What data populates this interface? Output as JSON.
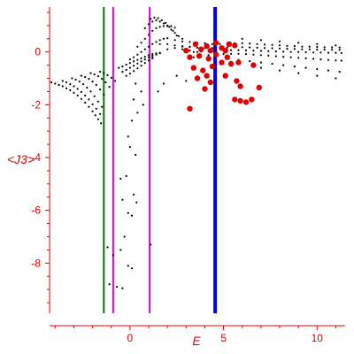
{
  "chart_data": {
    "type": "scatter",
    "xlabel": "E",
    "ylabel": "<J3>",
    "xlim": [
      -4.3,
      11.5
    ],
    "ylim": [
      -9.9,
      1.7
    ],
    "xticks": [
      {
        "value": 0,
        "label": "0"
      },
      {
        "value": 5,
        "label": "5"
      },
      {
        "value": 10,
        "label": "10"
      }
    ],
    "yticks": [
      {
        "value": 0,
        "label": "0"
      },
      {
        "value": -2,
        "label": "-2"
      },
      {
        "value": -4,
        "label": "-4"
      },
      {
        "value": -6,
        "label": "-6"
      },
      {
        "value": -8,
        "label": "-8"
      }
    ],
    "axis_color": "#e00000",
    "vertical_lines": [
      {
        "x": -1.4,
        "color": "#007a00"
      },
      {
        "x": -0.9,
        "color": "#e000e0"
      },
      {
        "x": 1.05,
        "color": "#e000e0"
      },
      {
        "x": 4.55,
        "color": "#0000ee"
      }
    ],
    "series": [
      {
        "color": "#000000",
        "points": [
          [
            -4.2,
            -1.15
          ],
          [
            -4.0,
            -1.2
          ],
          [
            -3.8,
            -1.25
          ],
          [
            -3.6,
            -1.3
          ],
          [
            -3.4,
            -1.38
          ],
          [
            -3.2,
            -1.45
          ],
          [
            -3.0,
            -1.55
          ],
          [
            -2.8,
            -1.65
          ],
          [
            -2.6,
            -1.78
          ],
          [
            -2.4,
            -1.92
          ],
          [
            -2.2,
            -2.08
          ],
          [
            -2.0,
            -2.25
          ],
          [
            -1.85,
            -2.4
          ],
          [
            -1.7,
            -2.55
          ],
          [
            -1.55,
            -2.7
          ],
          [
            -3.6,
            -1.1
          ],
          [
            -3.4,
            -1.15
          ],
          [
            -3.2,
            -1.22
          ],
          [
            -3.0,
            -1.3
          ],
          [
            -2.8,
            -1.4
          ],
          [
            -2.6,
            -1.52
          ],
          [
            -2.4,
            -1.65
          ],
          [
            -2.2,
            -1.8
          ],
          [
            -2.0,
            -1.98
          ],
          [
            -1.8,
            -2.15
          ],
          [
            -1.6,
            -2.35
          ],
          [
            -3.1,
            -1.0
          ],
          [
            -2.9,
            -1.05
          ],
          [
            -2.7,
            -1.12
          ],
          [
            -2.5,
            -1.22
          ],
          [
            -2.3,
            -1.35
          ],
          [
            -2.1,
            -1.5
          ],
          [
            -1.9,
            -1.68
          ],
          [
            -1.7,
            -1.88
          ],
          [
            -1.5,
            -2.08
          ],
          [
            -2.6,
            -0.9
          ],
          [
            -2.4,
            -0.95
          ],
          [
            -2.2,
            -1.02
          ],
          [
            -2.0,
            -1.12
          ],
          [
            -1.8,
            -1.25
          ],
          [
            -1.6,
            -1.42
          ],
          [
            -1.4,
            -1.62
          ],
          [
            -2.1,
            -0.8
          ],
          [
            -1.9,
            -0.85
          ],
          [
            -1.7,
            -0.92
          ],
          [
            -1.5,
            -1.02
          ],
          [
            -1.3,
            -1.15
          ],
          [
            -1.1,
            -1.32
          ],
          [
            -1.6,
            -0.75
          ],
          [
            -1.4,
            -0.8
          ],
          [
            -1.2,
            -0.88
          ],
          [
            -1.0,
            -0.98
          ],
          [
            -0.8,
            -1.1
          ],
          [
            -0.6,
            -0.6
          ],
          [
            -0.4,
            -0.55
          ],
          [
            -0.2,
            -0.48
          ],
          [
            0.0,
            -0.42
          ],
          [
            0.2,
            -0.36
          ],
          [
            0.4,
            -0.3
          ],
          [
            0.6,
            -0.24
          ],
          [
            0.8,
            -0.18
          ],
          [
            1.0,
            -0.12
          ],
          [
            1.2,
            -0.08
          ],
          [
            1.4,
            -0.05
          ],
          [
            1.6,
            -0.03
          ],
          [
            -0.4,
            -0.75
          ],
          [
            -0.2,
            -0.68
          ],
          [
            0.0,
            -0.6
          ],
          [
            0.2,
            -0.52
          ],
          [
            0.4,
            -0.44
          ],
          [
            0.6,
            -0.36
          ],
          [
            0.8,
            -0.28
          ],
          [
            1.0,
            -0.2
          ],
          [
            1.2,
            -0.14
          ],
          [
            1.4,
            -0.1
          ],
          [
            -0.2,
            -0.9
          ],
          [
            0.0,
            -0.82
          ],
          [
            0.2,
            -0.72
          ],
          [
            0.4,
            -0.62
          ],
          [
            0.6,
            -0.52
          ],
          [
            0.8,
            -0.42
          ],
          [
            1.0,
            -0.32
          ],
          [
            1.2,
            -0.24
          ],
          [
            0.0,
            -0.28
          ],
          [
            0.2,
            -0.2
          ],
          [
            0.4,
            -0.1
          ],
          [
            0.6,
            0.0
          ],
          [
            0.8,
            0.1
          ],
          [
            1.0,
            0.2
          ],
          [
            1.2,
            0.3
          ],
          [
            1.4,
            0.38
          ],
          [
            1.6,
            0.45
          ],
          [
            1.8,
            0.5
          ],
          [
            2.0,
            0.52
          ],
          [
            0.4,
            0.2
          ],
          [
            0.6,
            0.35
          ],
          [
            0.8,
            0.5
          ],
          [
            1.0,
            0.65
          ],
          [
            1.2,
            0.8
          ],
          [
            1.4,
            0.9
          ],
          [
            1.6,
            0.95
          ],
          [
            1.8,
            0.98
          ],
          [
            2.0,
            1.0
          ],
          [
            2.2,
            0.98
          ],
          [
            2.4,
            0.92
          ],
          [
            0.8,
            0.9
          ],
          [
            1.0,
            1.05
          ],
          [
            1.2,
            1.15
          ],
          [
            1.4,
            1.2
          ],
          [
            1.6,
            1.15
          ],
          [
            1.8,
            1.08
          ],
          [
            2.0,
            0.98
          ],
          [
            2.2,
            0.85
          ],
          [
            2.4,
            0.72
          ],
          [
            2.6,
            0.6
          ],
          [
            2.8,
            0.5
          ],
          [
            1.1,
            1.25
          ],
          [
            1.3,
            1.3
          ],
          [
            1.5,
            1.28
          ],
          [
            1.7,
            1.2
          ],
          [
            1.9,
            1.1
          ],
          [
            2.1,
            0.95
          ],
          [
            2.3,
            0.8
          ],
          [
            2.5,
            0.62
          ],
          [
            1.2,
            -0.2
          ],
          [
            1.6,
            -0.05
          ],
          [
            2.0,
            0.1
          ],
          [
            2.4,
            0.15
          ],
          [
            2.8,
            0.1
          ],
          [
            3.2,
            0.05
          ],
          [
            3.6,
            0.0
          ],
          [
            1.6,
            0.3
          ],
          [
            2.0,
            0.3
          ],
          [
            2.4,
            0.25
          ],
          [
            2.8,
            0.22
          ],
          [
            3.2,
            0.2
          ],
          [
            2.4,
            0.45
          ],
          [
            2.8,
            0.4
          ],
          [
            3.2,
            0.38
          ],
          [
            3.6,
            0.35
          ],
          [
            4.0,
            0.33
          ],
          [
            4.4,
            0.3
          ],
          [
            4.8,
            0.3
          ],
          [
            5.2,
            0.32
          ],
          [
            5.6,
            0.33
          ],
          [
            6.0,
            0.33
          ],
          [
            6.4,
            0.32
          ],
          [
            6.8,
            0.3
          ],
          [
            7.2,
            0.28
          ],
          [
            7.6,
            0.27
          ],
          [
            8.0,
            0.25
          ],
          [
            8.4,
            0.23
          ],
          [
            8.8,
            0.22
          ],
          [
            9.2,
            0.2
          ],
          [
            9.6,
            0.2
          ],
          [
            10.0,
            0.19
          ],
          [
            10.4,
            0.18
          ],
          [
            10.8,
            0.17
          ],
          [
            11.2,
            0.17
          ],
          [
            2.8,
            0.2
          ],
          [
            3.2,
            0.18
          ],
          [
            3.6,
            0.16
          ],
          [
            4.0,
            0.15
          ],
          [
            4.4,
            0.15
          ],
          [
            4.8,
            0.16
          ],
          [
            5.2,
            0.17
          ],
          [
            5.6,
            0.18
          ],
          [
            6.0,
            0.18
          ],
          [
            6.4,
            0.17
          ],
          [
            6.8,
            0.16
          ],
          [
            7.2,
            0.15
          ],
          [
            7.6,
            0.14
          ],
          [
            8.0,
            0.13
          ],
          [
            8.4,
            0.12
          ],
          [
            8.8,
            0.11
          ],
          [
            9.2,
            0.1
          ],
          [
            9.6,
            0.1
          ],
          [
            10.0,
            0.09
          ],
          [
            10.4,
            0.09
          ],
          [
            10.8,
            0.08
          ],
          [
            11.2,
            0.08
          ],
          [
            3.0,
            0.0
          ],
          [
            3.4,
            0.0
          ],
          [
            3.8,
            0.02
          ],
          [
            4.2,
            0.03
          ],
          [
            4.6,
            0.05
          ],
          [
            5.0,
            0.06
          ],
          [
            5.4,
            0.07
          ],
          [
            5.8,
            0.07
          ],
          [
            6.2,
            0.06
          ],
          [
            6.6,
            0.05
          ],
          [
            7.0,
            0.04
          ],
          [
            7.4,
            0.03
          ],
          [
            7.8,
            0.02
          ],
          [
            8.2,
            0.01
          ],
          [
            8.6,
            0.0
          ],
          [
            9.0,
            0.0
          ],
          [
            9.4,
            -0.01
          ],
          [
            9.8,
            -0.02
          ],
          [
            10.2,
            -0.02
          ],
          [
            10.6,
            -0.03
          ],
          [
            11.0,
            -0.03
          ],
          [
            11.3,
            -0.04
          ],
          [
            3.4,
            -0.2
          ],
          [
            3.8,
            -0.16
          ],
          [
            4.2,
            -0.12
          ],
          [
            4.6,
            -0.1
          ],
          [
            5.0,
            -0.08
          ],
          [
            5.4,
            -0.07
          ],
          [
            5.8,
            -0.07
          ],
          [
            6.2,
            -0.08
          ],
          [
            6.6,
            -0.1
          ],
          [
            7.0,
            -0.12
          ],
          [
            7.4,
            -0.14
          ],
          [
            7.8,
            -0.16
          ],
          [
            8.2,
            -0.18
          ],
          [
            8.6,
            -0.2
          ],
          [
            9.0,
            -0.22
          ],
          [
            9.4,
            -0.24
          ],
          [
            9.8,
            -0.26
          ],
          [
            10.2,
            -0.28
          ],
          [
            10.6,
            -0.3
          ],
          [
            11.0,
            -0.32
          ],
          [
            11.3,
            -0.33
          ],
          [
            5.8,
            -0.3
          ],
          [
            6.4,
            -0.35
          ],
          [
            7.0,
            -0.4
          ],
          [
            7.6,
            -0.45
          ],
          [
            8.2,
            -0.5
          ],
          [
            8.8,
            -0.55
          ],
          [
            9.4,
            -0.6
          ],
          [
            10.0,
            -0.65
          ],
          [
            10.6,
            -0.7
          ],
          [
            11.2,
            -0.75
          ],
          [
            7.0,
            -0.6
          ],
          [
            8.0,
            -0.7
          ],
          [
            9.0,
            -0.8
          ],
          [
            10.0,
            -0.9
          ],
          [
            11.0,
            -1.0
          ],
          [
            6.0,
            0.5
          ],
          [
            7.0,
            0.45
          ],
          [
            8.0,
            0.4
          ],
          [
            9.0,
            0.35
          ],
          [
            10.0,
            0.3
          ],
          [
            11.0,
            0.25
          ],
          [
            0.3,
            -1.2
          ],
          [
            0.6,
            -1.5
          ],
          [
            0.2,
            -1.8
          ],
          [
            0.7,
            -2.0
          ],
          [
            0.4,
            -2.3
          ],
          [
            0.1,
            -2.6
          ],
          [
            -0.1,
            -3.2
          ],
          [
            0.0,
            -3.6
          ],
          [
            0.3,
            -3.9
          ],
          [
            -0.2,
            -4.7
          ],
          [
            -0.5,
            -4.8
          ],
          [
            0.2,
            -5.4
          ],
          [
            0.35,
            -5.7
          ],
          [
            -0.4,
            -5.6
          ],
          [
            -0.1,
            -6.1
          ],
          [
            0.1,
            -6.2
          ],
          [
            -0.3,
            -7.0
          ],
          [
            -0.5,
            -7.5
          ],
          [
            -1.2,
            -7.4
          ],
          [
            -0.9,
            -7.7
          ],
          [
            -0.1,
            -8.1
          ],
          [
            0.1,
            -8.2
          ],
          [
            -1.1,
            -8.8
          ],
          [
            -0.7,
            -8.9
          ],
          [
            -0.4,
            -8.95
          ],
          [
            1.1,
            -7.3
          ],
          [
            1.5,
            -1.5
          ],
          [
            1.8,
            -1.2
          ],
          [
            2.5,
            -0.9
          ],
          [
            3.0,
            -1.1
          ]
        ]
      },
      {
        "color": "#e00000",
        "points": [
          [
            3.8,
            0.1
          ],
          [
            4.1,
            0.22
          ],
          [
            4.3,
            0.05
          ],
          [
            3.7,
            -0.15
          ],
          [
            4.2,
            -0.25
          ],
          [
            4.6,
            -0.1
          ],
          [
            4.9,
            0.15
          ],
          [
            5.1,
            0.05
          ],
          [
            5.3,
            0.3
          ],
          [
            5.6,
            0.25
          ],
          [
            5.2,
            -0.2
          ],
          [
            4.9,
            -0.4
          ],
          [
            5.4,
            -0.45
          ],
          [
            5.8,
            -0.4
          ],
          [
            4.4,
            -0.55
          ],
          [
            3.9,
            -0.7
          ],
          [
            4.1,
            -0.9
          ],
          [
            4.3,
            -1.15
          ],
          [
            4.0,
            -1.4
          ],
          [
            3.6,
            -1.0
          ],
          [
            3.4,
            -0.6
          ],
          [
            3.2,
            -0.2
          ],
          [
            3.0,
            0.05
          ],
          [
            5.7,
            -1.1
          ],
          [
            5.9,
            -1.3
          ],
          [
            5.6,
            -1.8
          ],
          [
            5.9,
            -1.85
          ],
          [
            6.2,
            -1.9
          ],
          [
            6.5,
            -1.8
          ],
          [
            5.1,
            -0.9
          ],
          [
            3.2,
            -2.15
          ],
          [
            6.9,
            -1.35
          ],
          [
            6.6,
            -0.5
          ],
          [
            3.5,
            0.3
          ],
          [
            4.6,
            0.35
          ]
        ]
      }
    ]
  }
}
